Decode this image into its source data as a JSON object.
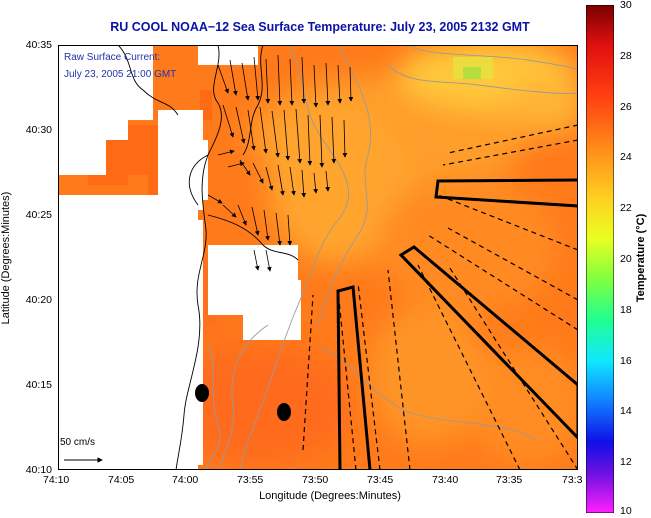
{
  "title": "RU COOL  NOAA−12  Sea Surface Temperature:  July 23, 2005 2132 GMT",
  "annotation": {
    "line1": "Raw Surface Current:",
    "line2": "July 23, 2005 21:00 GMT"
  },
  "scale": {
    "label": "50 cm/s"
  },
  "axes": {
    "xlabel": "Longitude (Degrees:Minutes)",
    "ylabel": "Latitude (Degrees:Minutes)",
    "xticks": [
      "74:10",
      "74:05",
      "74:00",
      "73:55",
      "73:50",
      "73:45",
      "73:40",
      "73:35",
      "73:3"
    ],
    "yticks": [
      "40:35",
      "40:30",
      "40:25",
      "40:20",
      "40:15",
      "40:10"
    ]
  },
  "colorbar": {
    "title": "Temperature (°C)",
    "ticks": [
      "30",
      "28",
      "26",
      "24",
      "22",
      "20",
      "18",
      "16",
      "14",
      "12",
      "10"
    ],
    "min": 10,
    "max": 30
  },
  "colors": {
    "title": "#0a12a8",
    "sst_base": "#ff7a1a",
    "land": "#ffffff"
  }
}
